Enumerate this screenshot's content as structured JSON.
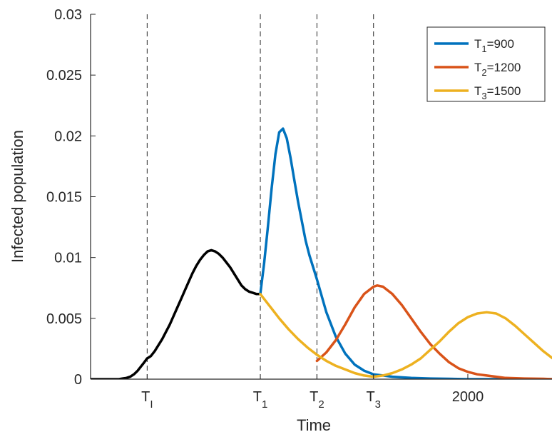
{
  "chart_data": {
    "type": "line",
    "xlabel": "Time",
    "ylabel": "Infected population",
    "xlim": [
      0,
      2450
    ],
    "ylim": [
      0,
      0.03
    ],
    "grid": false,
    "legend_position": "top-right",
    "y_ticks": [
      {
        "value": 0,
        "label": "0"
      },
      {
        "value": 0.005,
        "label": "0.005"
      },
      {
        "value": 0.01,
        "label": "0.01"
      },
      {
        "value": 0.015,
        "label": "0.015"
      },
      {
        "value": 0.02,
        "label": "0.02"
      },
      {
        "value": 0.025,
        "label": "0.025"
      },
      {
        "value": 0.03,
        "label": "0.03"
      }
    ],
    "x_ticks": [
      {
        "value": 300,
        "main": "T",
        "sub": "I"
      },
      {
        "value": 900,
        "main": "T",
        "sub": "1"
      },
      {
        "value": 1200,
        "main": "T",
        "sub": "2"
      },
      {
        "value": 1500,
        "main": "T",
        "sub": "3"
      },
      {
        "value": 2000,
        "main": "2000",
        "sub": ""
      }
    ],
    "vlines": [
      300,
      900,
      1200,
      1500
    ],
    "series": [
      {
        "legend": false,
        "color": "#000000",
        "x": [
          0,
          150,
          170,
          190,
          210,
          230,
          250,
          270,
          280,
          290,
          300,
          320,
          340,
          360,
          380,
          400,
          420,
          440,
          460,
          480,
          500,
          520,
          540,
          560,
          580,
          600,
          620,
          640,
          660,
          680,
          700,
          720,
          740,
          760,
          780,
          800,
          820,
          840,
          860,
          880,
          900
        ],
        "y": [
          0,
          0,
          5e-05,
          0.0001,
          0.0002,
          0.0004,
          0.0007,
          0.0011,
          0.0013,
          0.0015,
          0.0017,
          0.0019,
          0.0023,
          0.0028,
          0.0033,
          0.0039,
          0.0045,
          0.0052,
          0.0059,
          0.0066,
          0.0073,
          0.008,
          0.0087,
          0.0093,
          0.0098,
          0.0102,
          0.0105,
          0.0106,
          0.0105,
          0.0103,
          0.01,
          0.0096,
          0.0092,
          0.0087,
          0.0082,
          0.0077,
          0.0074,
          0.0072,
          0.0071,
          0.007,
          0.007
        ]
      },
      {
        "name_main": "T",
        "name_sub": "1",
        "name_suffix": "=900",
        "legend": true,
        "color": "#0072BD",
        "x": [
          900,
          920,
          940,
          960,
          980,
          1000,
          1020,
          1040,
          1060,
          1080,
          1100,
          1120,
          1140,
          1160,
          1180,
          1200,
          1250,
          1300,
          1350,
          1400,
          1450,
          1500,
          1600,
          1700,
          1800,
          1900,
          2000,
          2200,
          2450
        ],
        "y": [
          0.007,
          0.0095,
          0.0125,
          0.0157,
          0.0185,
          0.0203,
          0.0206,
          0.0198,
          0.0182,
          0.0164,
          0.0146,
          0.013,
          0.0114,
          0.0102,
          0.0092,
          0.0082,
          0.0055,
          0.0035,
          0.0021,
          0.0012,
          0.0007,
          0.0004,
          0.0002,
          0.0001,
          5e-05,
          3e-05,
          0,
          0,
          0
        ]
      },
      {
        "name_main": "T",
        "name_sub": "2",
        "name_suffix": "=1200",
        "legend": true,
        "color": "#D95319",
        "x": [
          1200,
          1250,
          1300,
          1350,
          1400,
          1450,
          1500,
          1520,
          1550,
          1600,
          1650,
          1700,
          1750,
          1800,
          1850,
          1900,
          1950,
          2000,
          2050,
          2100,
          2150,
          2200,
          2300,
          2400,
          2450
        ],
        "y": [
          0.0015,
          0.0022,
          0.0032,
          0.0045,
          0.0059,
          0.007,
          0.0076,
          0.0077,
          0.0076,
          0.007,
          0.0061,
          0.005,
          0.0039,
          0.0029,
          0.0021,
          0.0014,
          0.0009,
          0.0006,
          0.0004,
          0.0003,
          0.0002,
          0.0001,
          5e-05,
          3e-05,
          0
        ]
      },
      {
        "name_main": "T",
        "name_sub": "3",
        "name_suffix": "=1500",
        "legend": true,
        "color": "#EDB120",
        "x": [
          900,
          950,
          1000,
          1050,
          1100,
          1150,
          1200,
          1250,
          1300,
          1350,
          1400,
          1450,
          1500,
          1550,
          1600,
          1650,
          1700,
          1750,
          1800,
          1850,
          1900,
          1950,
          2000,
          2050,
          2100,
          2150,
          2200,
          2250,
          2300,
          2350,
          2400,
          2450
        ],
        "y": [
          0.007,
          0.006,
          0.005,
          0.0041,
          0.0033,
          0.0026,
          0.002,
          0.0015,
          0.0011,
          0.0008,
          0.0005,
          0.0003,
          0.0002,
          0.0003,
          0.0005,
          0.0008,
          0.0012,
          0.0017,
          0.0024,
          0.0031,
          0.0039,
          0.0046,
          0.0051,
          0.0054,
          0.0055,
          0.0054,
          0.005,
          0.0044,
          0.0037,
          0.003,
          0.0023,
          0.0017
        ]
      }
    ]
  }
}
